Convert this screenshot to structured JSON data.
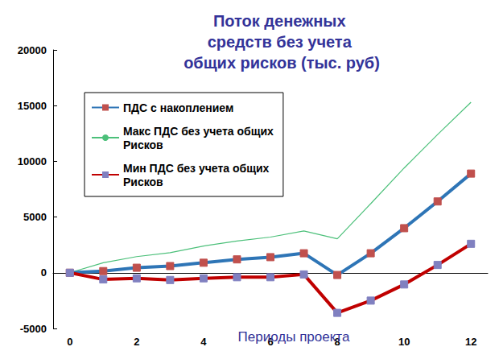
{
  "chart_data": {
    "type": "line",
    "title": "Поток денежных средств без учета общих рисков (тыс. руб)",
    "x_label": "Периоды проекта",
    "categories": [
      0,
      null,
      2,
      null,
      4,
      null,
      6,
      null,
      8,
      null,
      10,
      null,
      12
    ],
    "series": [
      {
        "name": "ПДС с накоплением",
        "color": "#2E75B6",
        "marker": "square",
        "line_style": "solid",
        "values": [
          0,
          150,
          450,
          600,
          900,
          1200,
          1400,
          1750,
          -200,
          1750,
          4000,
          6400,
          8900
        ]
      },
      {
        "name": "Макс ПДС без учета общих Рисков",
        "color": "#4CC07A",
        "marker": "none",
        "line_style": "solid",
        "values": [
          0,
          900,
          1450,
          1800,
          2400,
          2850,
          3200,
          3750,
          3050,
          6200,
          9400,
          12400,
          15300
        ]
      },
      {
        "name": "Мин ПДС без учета общих Рисков",
        "color": "#C00000",
        "marker": "square",
        "line_style": "solid",
        "values": [
          0,
          -600,
          -500,
          -650,
          -500,
          -400,
          -400,
          -150,
          -3600,
          -2500,
          -1050,
          700,
          2600
        ]
      }
    ],
    "ylim": [
      -5000,
      20000
    ],
    "yticks": [
      -5000,
      0,
      5000,
      10000,
      15000,
      20000
    ],
    "grid": false,
    "legend": "upper left"
  }
}
